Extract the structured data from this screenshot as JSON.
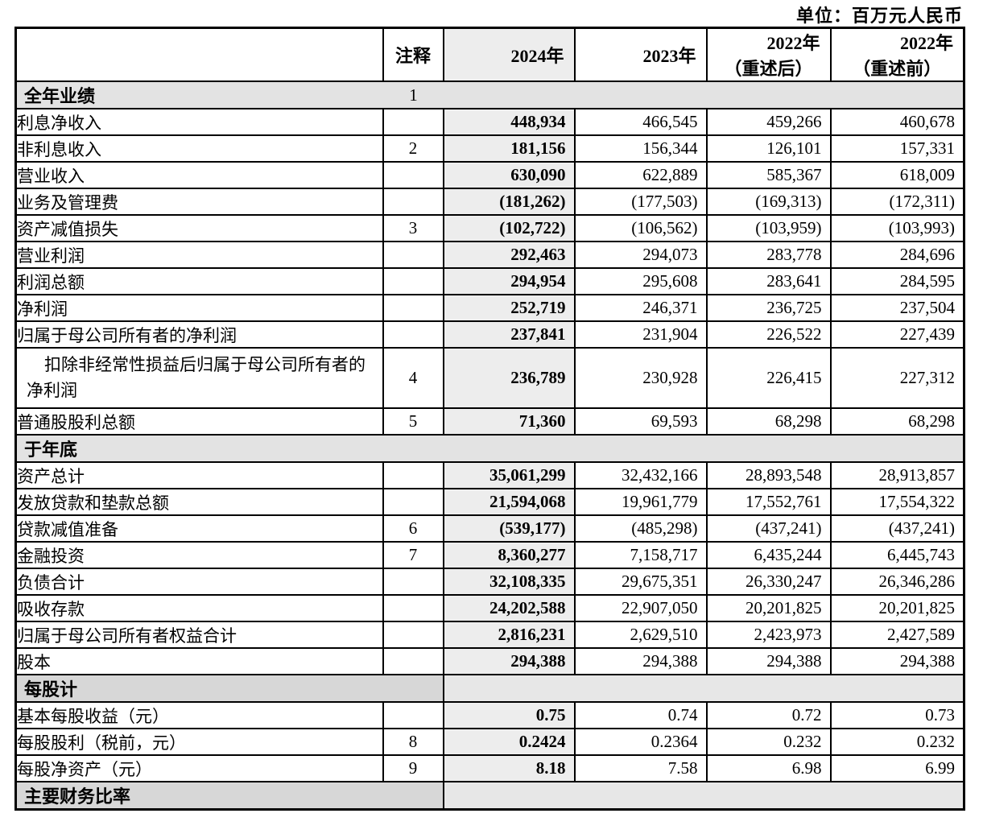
{
  "unit_label": "单位：百万元人民币",
  "table": {
    "header": {
      "note": "注释",
      "col_2024": "2024年",
      "col_2023": "2023年",
      "col_2022_restated_line1": "2022年",
      "col_2022_restated_line2": "（重述后）",
      "col_2022_prior_line1": "2022年",
      "col_2022_prior_line2": "（重述前）"
    },
    "rows": [
      {
        "type": "section",
        "label": "全年业绩",
        "note": "1"
      },
      {
        "type": "data",
        "label": "利息净收入",
        "indent": 1,
        "note": "",
        "values": [
          "448,934",
          "466,545",
          "459,266",
          "460,678"
        ]
      },
      {
        "type": "data",
        "label": "非利息收入",
        "indent": 1,
        "note": "2",
        "values": [
          "181,156",
          "156,344",
          "126,101",
          "157,331"
        ]
      },
      {
        "type": "data",
        "label": "营业收入",
        "indent": 1,
        "note": "",
        "values": [
          "630,090",
          "622,889",
          "585,367",
          "618,009"
        ]
      },
      {
        "type": "data",
        "label": "业务及管理费",
        "indent": 1,
        "note": "",
        "values": [
          "(181,262)",
          "(177,503)",
          "(169,313)",
          "(172,311)"
        ]
      },
      {
        "type": "data",
        "label": "资产减值损失",
        "indent": 1,
        "note": "3",
        "values": [
          "(102,722)",
          "(106,562)",
          "(103,959)",
          "(103,993)"
        ]
      },
      {
        "type": "data",
        "label": "营业利润",
        "indent": 1,
        "note": "",
        "values": [
          "292,463",
          "294,073",
          "283,778",
          "284,696"
        ]
      },
      {
        "type": "data",
        "label": "利润总额",
        "indent": 1,
        "note": "",
        "values": [
          "294,954",
          "295,608",
          "283,641",
          "284,595"
        ]
      },
      {
        "type": "data",
        "label": "净利润",
        "indent": 1,
        "note": "",
        "values": [
          "252,719",
          "246,371",
          "236,725",
          "237,504"
        ]
      },
      {
        "type": "data",
        "label": "归属于母公司所有者的净利润",
        "indent": 1,
        "note": "",
        "values": [
          "237,841",
          "231,904",
          "226,522",
          "227,439"
        ]
      },
      {
        "type": "data",
        "label": "扣除非经常性损益后归属于母公司所有者的净利润",
        "indent": 1,
        "wrap": true,
        "note": "4",
        "values": [
          "236,789",
          "230,928",
          "226,415",
          "227,312"
        ]
      },
      {
        "type": "data",
        "label": "普通股股利总额",
        "indent": 1,
        "note": "5",
        "values": [
          "71,360",
          "69,593",
          "68,298",
          "68,298"
        ]
      },
      {
        "type": "section",
        "label": "于年底",
        "note": ""
      },
      {
        "type": "data",
        "label": "资产总计",
        "indent": 1,
        "note": "",
        "values": [
          "35,061,299",
          "32,432,166",
          "28,893,548",
          "28,913,857"
        ]
      },
      {
        "type": "data",
        "label": "发放贷款和垫款总额",
        "indent": 2,
        "note": "",
        "values": [
          "21,594,068",
          "19,961,779",
          "17,552,761",
          "17,554,322"
        ]
      },
      {
        "type": "data",
        "label": "贷款减值准备",
        "indent": 3,
        "note": "6",
        "values": [
          "(539,177)",
          "(485,298)",
          "(437,241)",
          "(437,241)"
        ]
      },
      {
        "type": "data",
        "label": "金融投资",
        "indent": 2,
        "note": "7",
        "values": [
          "8,360,277",
          "7,158,717",
          "6,435,244",
          "6,445,743"
        ]
      },
      {
        "type": "data",
        "label": "负债合计",
        "indent": 1,
        "note": "",
        "values": [
          "32,108,335",
          "29,675,351",
          "26,330,247",
          "26,346,286"
        ]
      },
      {
        "type": "data",
        "label": "吸收存款",
        "indent": 2,
        "note": "",
        "values": [
          "24,202,588",
          "22,907,050",
          "20,201,825",
          "20,201,825"
        ]
      },
      {
        "type": "data",
        "label": "归属于母公司所有者权益合计",
        "indent": 1,
        "note": "",
        "values": [
          "2,816,231",
          "2,629,510",
          "2,423,973",
          "2,427,589"
        ]
      },
      {
        "type": "data",
        "label": "股本",
        "indent": 2,
        "note": "",
        "values": [
          "294,388",
          "294,388",
          "294,388",
          "294,388"
        ]
      },
      {
        "type": "section",
        "label": "每股计",
        "note": "",
        "split": true
      },
      {
        "type": "data",
        "label": "基本每股收益（元）",
        "indent": 1,
        "note": "",
        "values": [
          "0.75",
          "0.74",
          "0.72",
          "0.73"
        ]
      },
      {
        "type": "data",
        "label": "每股股利（税前，元）",
        "indent": 1,
        "note": "8",
        "values": [
          "0.2424",
          "0.2364",
          "0.232",
          "0.232"
        ]
      },
      {
        "type": "data",
        "label": "每股净资产（元）",
        "indent": 1,
        "note": "9",
        "values": [
          "8.18",
          "7.58",
          "6.98",
          "6.99"
        ]
      },
      {
        "type": "section",
        "label": "主要财务比率",
        "note": "",
        "split": true,
        "cut": true
      }
    ]
  },
  "colors": {
    "col_2024_bg": "#ededed",
    "section_bg": "#e3e3e3",
    "section_dark_bg": "#d7d7d7",
    "section_light_bg": "#e7e7e7",
    "border": "#000000"
  }
}
